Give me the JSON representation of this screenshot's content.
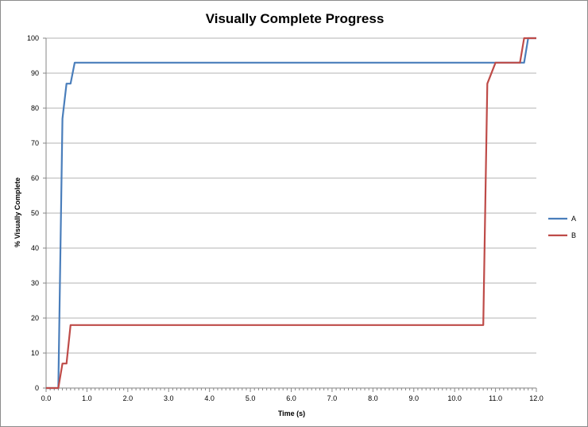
{
  "chart_data": {
    "type": "line",
    "title": "Visually Complete Progress",
    "xlabel": "Time (s)",
    "ylabel": "% Visually Complete",
    "xlim": [
      0,
      12
    ],
    "ylim": [
      0,
      100
    ],
    "x_major_ticks": [
      "0.0",
      "1.0",
      "2.0",
      "3.0",
      "4.0",
      "5.0",
      "6.0",
      "7.0",
      "8.0",
      "9.0",
      "10.0",
      "11.0",
      "12.0"
    ],
    "y_major_ticks": [
      "0",
      "10",
      "20",
      "30",
      "40",
      "50",
      "60",
      "70",
      "80",
      "90",
      "100"
    ],
    "x_minor_step": 0.1,
    "grid": "horizontal",
    "legend_position": "right",
    "series": [
      {
        "name": "A",
        "color": "#4a7ebb",
        "points": [
          [
            0,
            0
          ],
          [
            0.3,
            0
          ],
          [
            0.4,
            77
          ],
          [
            0.5,
            87
          ],
          [
            0.6,
            87
          ],
          [
            0.7,
            93
          ],
          [
            11.0,
            93
          ],
          [
            11.7,
            93
          ],
          [
            11.8,
            100
          ],
          [
            12.0,
            100
          ]
        ]
      },
      {
        "name": "B",
        "color": "#be4b48",
        "points": [
          [
            0,
            0
          ],
          [
            0.3,
            0
          ],
          [
            0.4,
            7
          ],
          [
            0.5,
            7
          ],
          [
            0.6,
            18
          ],
          [
            10.7,
            18
          ],
          [
            10.8,
            87
          ],
          [
            11.0,
            93
          ],
          [
            11.6,
            93
          ],
          [
            11.7,
            100
          ],
          [
            12.0,
            100
          ]
        ]
      }
    ]
  }
}
